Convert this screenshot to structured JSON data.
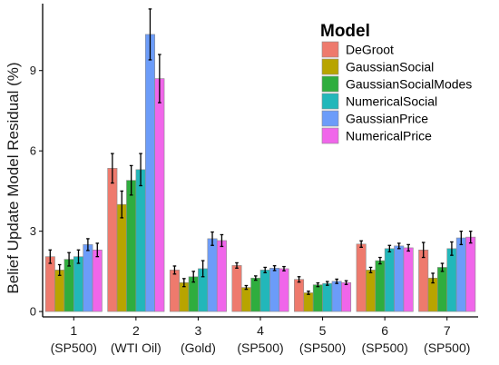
{
  "chart_data": {
    "type": "bar",
    "title": "",
    "xlabel": "",
    "ylabel": "Belief Update Model Residual (%)",
    "ylim": [
      -0.2,
      11.5
    ],
    "yticks": [
      0,
      3,
      6,
      9
    ],
    "grid": false,
    "legend": {
      "title": "Model",
      "position": "top-right"
    },
    "categories": [
      {
        "number": "1",
        "asset": "(SP500)"
      },
      {
        "number": "2",
        "asset": "(WTI Oil)"
      },
      {
        "number": "3",
        "asset": "(Gold)"
      },
      {
        "number": "4",
        "asset": "(SP500)"
      },
      {
        "number": "5",
        "asset": "(SP500)"
      },
      {
        "number": "6",
        "asset": "(SP500)"
      },
      {
        "number": "7",
        "asset": "(SP500)"
      }
    ],
    "series": [
      {
        "name": "DeGroot",
        "color": "#ee7a6d",
        "values": [
          2.05,
          5.35,
          1.55,
          1.72,
          1.2,
          2.52,
          2.3
        ],
        "errors": [
          0.25,
          0.55,
          0.15,
          0.1,
          0.1,
          0.12,
          0.28
        ]
      },
      {
        "name": "GaussianSocial",
        "color": "#b8a400",
        "values": [
          1.55,
          4.0,
          1.08,
          0.9,
          0.7,
          1.55,
          1.25
        ],
        "errors": [
          0.2,
          0.5,
          0.15,
          0.07,
          0.06,
          0.1,
          0.18
        ]
      },
      {
        "name": "GaussianSocialModes",
        "color": "#2fad3e",
        "values": [
          1.95,
          4.9,
          1.3,
          1.25,
          1.0,
          1.9,
          1.65
        ],
        "errors": [
          0.25,
          0.55,
          0.2,
          0.08,
          0.07,
          0.12,
          0.15
        ]
      },
      {
        "name": "NumericalSocial",
        "color": "#22b7ba",
        "values": [
          2.05,
          5.3,
          1.6,
          1.55,
          1.05,
          2.35,
          2.35
        ],
        "errors": [
          0.25,
          0.6,
          0.3,
          0.1,
          0.07,
          0.12,
          0.25
        ]
      },
      {
        "name": "GaussianPrice",
        "color": "#6c9cf9",
        "values": [
          2.5,
          10.35,
          2.72,
          1.62,
          1.13,
          2.45,
          2.75
        ],
        "errors": [
          0.22,
          0.95,
          0.25,
          0.09,
          0.08,
          0.1,
          0.25
        ]
      },
      {
        "name": "NumericalPrice",
        "color": "#f066ea",
        "values": [
          2.3,
          8.7,
          2.65,
          1.6,
          1.08,
          2.38,
          2.78
        ],
        "errors": [
          0.25,
          0.9,
          0.22,
          0.08,
          0.07,
          0.12,
          0.22
        ]
      }
    ]
  }
}
